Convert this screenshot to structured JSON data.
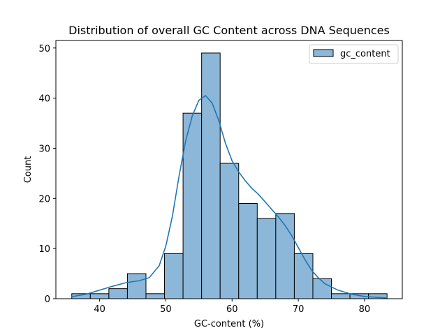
{
  "chart_data": {
    "type": "bar",
    "subtype": "histogram",
    "title": "Distribution of overall GC Content across DNA Sequences",
    "xlabel": "GC-content (%)",
    "ylabel": "Count",
    "xlim": [
      33.4,
      85.7
    ],
    "ylim": [
      0,
      51.5
    ],
    "xticks": [
      40,
      50,
      60,
      70,
      80
    ],
    "yticks": [
      0,
      10,
      20,
      30,
      40,
      50
    ],
    "grid": false,
    "legend": {
      "position": "upper right",
      "entries": [
        "gc_content"
      ]
    },
    "colors": {
      "bar_fill": "#8cb7d8",
      "bar_edge": "#000000",
      "kde_line": "#1f77b4"
    },
    "bins": [
      {
        "x0": 35.8,
        "x1": 38.6,
        "count": 1
      },
      {
        "x0": 38.6,
        "x1": 41.4,
        "count": 1
      },
      {
        "x0": 41.4,
        "x1": 44.2,
        "count": 2
      },
      {
        "x0": 44.2,
        "x1": 47.0,
        "count": 5
      },
      {
        "x0": 47.0,
        "x1": 49.8,
        "count": 1
      },
      {
        "x0": 49.8,
        "x1": 52.6,
        "count": 9
      },
      {
        "x0": 52.6,
        "x1": 55.4,
        "count": 37
      },
      {
        "x0": 55.4,
        "x1": 58.2,
        "count": 49
      },
      {
        "x0": 58.2,
        "x1": 61.0,
        "count": 27
      },
      {
        "x0": 61.0,
        "x1": 63.8,
        "count": 19
      },
      {
        "x0": 63.8,
        "x1": 66.6,
        "count": 16
      },
      {
        "x0": 66.6,
        "x1": 69.4,
        "count": 17
      },
      {
        "x0": 69.4,
        "x1": 72.2,
        "count": 9
      },
      {
        "x0": 72.2,
        "x1": 75.0,
        "count": 4
      },
      {
        "x0": 75.0,
        "x1": 77.8,
        "count": 1
      },
      {
        "x0": 77.8,
        "x1": 80.6,
        "count": 1
      },
      {
        "x0": 80.6,
        "x1": 83.4,
        "count": 1
      }
    ],
    "kde": {
      "x": [
        35.8,
        38,
        40,
        42,
        44,
        46,
        47.5,
        49,
        50,
        51,
        52,
        53,
        54,
        55,
        56,
        57,
        58,
        59,
        60,
        61,
        62,
        63,
        64,
        65,
        66,
        67,
        68,
        69,
        70,
        71,
        72,
        73,
        74,
        76,
        78,
        80,
        83.4
      ],
      "y": [
        0.4,
        0.9,
        1.7,
        2.5,
        3.2,
        3.6,
        4.2,
        6.6,
        10.5,
        16.5,
        24.5,
        31.5,
        36.5,
        39.6,
        40.5,
        39.0,
        35.5,
        31.0,
        27.5,
        25.3,
        23.5,
        22.0,
        20.8,
        19.3,
        17.8,
        16.3,
        14.6,
        12.6,
        10.2,
        7.8,
        5.7,
        4.2,
        3.0,
        1.7,
        0.9,
        0.45,
        0.15
      ]
    }
  }
}
